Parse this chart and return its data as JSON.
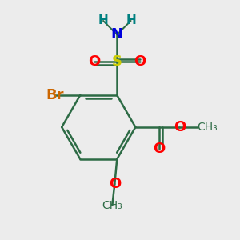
{
  "background_color": "#ececec",
  "bond_color": "#2d6b45",
  "bond_width": 1.8,
  "atom_colors": {
    "S": "#cccc00",
    "O": "#ff0000",
    "N": "#0000dd",
    "Br": "#cc6600",
    "H": "#008080",
    "C": "#2d6b45"
  },
  "font_size_atom": 13,
  "font_size_H": 11,
  "font_size_label": 10
}
